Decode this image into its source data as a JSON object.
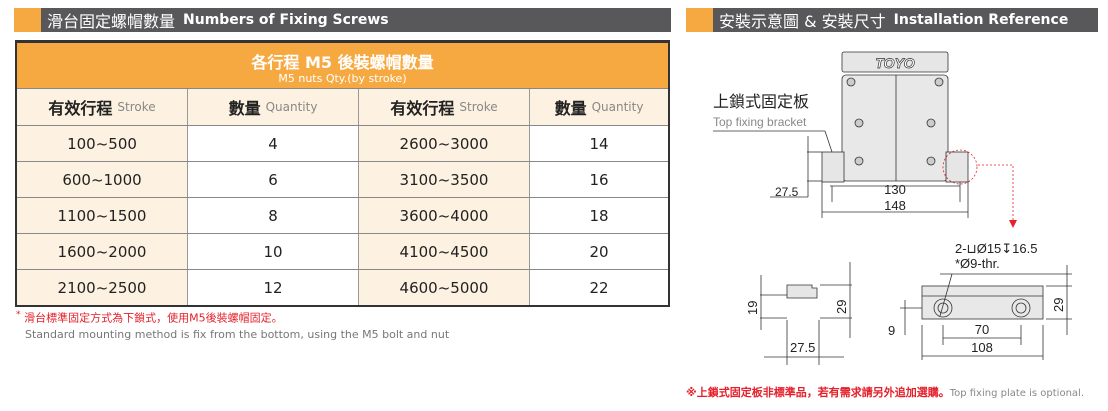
{
  "left_section": {
    "title_zh": "滑台固定螺帽數量",
    "title_en": "Numbers of Fixing Screws"
  },
  "table": {
    "title_zh": "各行程 M5 後裝螺帽數量",
    "title_en": "M5 nuts Qty.(by stroke)",
    "headers": [
      {
        "zh": "有效行程",
        "en": "Stroke"
      },
      {
        "zh": "數量",
        "en": "Quantity"
      },
      {
        "zh": "有效行程",
        "en": "Stroke"
      },
      {
        "zh": "數量",
        "en": "Quantity"
      }
    ],
    "rows": [
      [
        "100~500",
        "4",
        "2600~3000",
        "14"
      ],
      [
        "600~1000",
        "6",
        "3100~3500",
        "16"
      ],
      [
        "1100~1500",
        "8",
        "3600~4000",
        "18"
      ],
      [
        "1600~2000",
        "10",
        "4100~4500",
        "20"
      ],
      [
        "2100~2500",
        "12",
        "4600~5000",
        "22"
      ]
    ]
  },
  "note": {
    "mark": "*",
    "zh": "滑台標準固定方式為下鎖式，使用M5後裝螺帽固定。",
    "en": "Standard mounting method is fix from the bottom, using the M5 bolt and nut"
  },
  "right_section": {
    "title_zh": "安裝示意圖 & 安裝尺寸",
    "title_en": "Installation Reference"
  },
  "drawing": {
    "logo": "TOYO",
    "bracket_zh": "上鎖式固定板",
    "bracket_en": "Top fixing bracket",
    "dims_front": {
      "height": "27.5",
      "inner": "130",
      "outer": "148"
    },
    "hole_spec": "2-⊔Ø15↧16.5",
    "hole_thru": "*Ø9-thr.",
    "dims_side": {
      "h1": "19",
      "h2": "29",
      "w": "27.5"
    },
    "dims_plan": {
      "h": "29",
      "offset": "9",
      "pitch": "70",
      "len": "108"
    }
  },
  "bottom_note": {
    "zh": "※上鎖式固定板非標準品，若有需求請另外追加選購。",
    "en": "Top fixing plate is optional."
  },
  "colors": {
    "accent": "#f7a941",
    "bar": "#58585a",
    "red": "#e4202a",
    "cream": "#fdf1e1"
  }
}
